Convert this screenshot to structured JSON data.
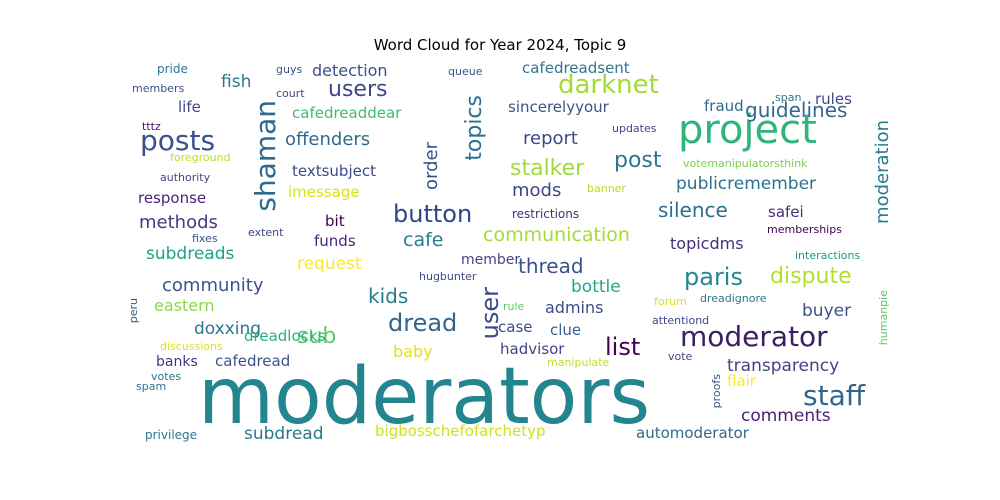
{
  "chart_data": {
    "type": "wordcloud",
    "title": "Word Cloud for Year 2024, Topic 9",
    "words": [
      {
        "text": "moderators",
        "color": "#23858e"
      },
      {
        "text": "project",
        "color": "#2fb47c"
      },
      {
        "text": "shaman",
        "color": "#30698e"
      },
      {
        "text": "posts",
        "color": "#3b518b"
      },
      {
        "text": "moderator",
        "color": "#3c1f63"
      },
      {
        "text": "staff",
        "color": "#32648e"
      },
      {
        "text": "darknet",
        "color": "#a2da37"
      },
      {
        "text": "users",
        "color": "#3f4788"
      },
      {
        "text": "topics",
        "color": "#2c718e"
      },
      {
        "text": "button",
        "color": "#32458a"
      },
      {
        "text": "paris",
        "color": "#24878e"
      },
      {
        "text": "dispute",
        "color": "#b5de2b"
      },
      {
        "text": "dread",
        "color": "#32658e"
      },
      {
        "text": "user",
        "color": "#3e4989"
      },
      {
        "text": "list",
        "color": "#440154"
      },
      {
        "text": "post",
        "color": "#2a788e"
      },
      {
        "text": "stalker",
        "color": "#a2da37"
      },
      {
        "text": "moderation",
        "color": "#287c8e"
      },
      {
        "text": "guidelines",
        "color": "#30698e"
      },
      {
        "text": "silence",
        "color": "#2d708e"
      },
      {
        "text": "sub",
        "color": "#5ec962"
      },
      {
        "text": "kids",
        "color": "#287c8e"
      },
      {
        "text": "thread",
        "color": "#3b528b"
      },
      {
        "text": "offenders",
        "color": "#306a8e"
      },
      {
        "text": "report",
        "color": "#3f4889"
      },
      {
        "text": "community",
        "color": "#3b528b"
      },
      {
        "text": "transparency",
        "color": "#414487"
      },
      {
        "text": "communication",
        "color": "#a5db36"
      },
      {
        "text": "cafe",
        "color": "#287d8e"
      },
      {
        "text": "subdreads",
        "color": "#1fa088"
      },
      {
        "text": "mods",
        "color": "#3f4788"
      },
      {
        "text": "order",
        "color": "#3b528b"
      },
      {
        "text": "publicremember",
        "color": "#2c728e"
      },
      {
        "text": "methods",
        "color": "#453781"
      },
      {
        "text": "doxxing",
        "color": "#2a788e"
      },
      {
        "text": "subdread",
        "color": "#2a778e"
      },
      {
        "text": "comments",
        "color": "#481f70"
      },
      {
        "text": "buyer",
        "color": "#3b528b"
      },
      {
        "text": "admins",
        "color": "#3e4989"
      },
      {
        "text": "request",
        "color": "#fde725"
      },
      {
        "text": "bottle",
        "color": "#22a884"
      },
      {
        "text": "detection",
        "color": "#3d4e8a"
      },
      {
        "text": "cafedreadsent",
        "color": "#2a788e"
      },
      {
        "text": "fish",
        "color": "#2a788e"
      },
      {
        "text": "baby",
        "color": "#dfe318"
      },
      {
        "text": "topicdms",
        "color": "#46307e"
      },
      {
        "text": "eastern",
        "color": "#8bd646"
      },
      {
        "text": "response",
        "color": "#482475"
      },
      {
        "text": "automoderator",
        "color": "#306a8e"
      },
      {
        "text": "textsubject",
        "color": "#3e4989"
      },
      {
        "text": "rules",
        "color": "#3f4889"
      },
      {
        "text": "bit",
        "color": "#440154"
      },
      {
        "text": "funds",
        "color": "#482878"
      },
      {
        "text": "cafedreaddear",
        "color": "#3dbc74"
      },
      {
        "text": "sincerelyyour",
        "color": "#3b528b"
      },
      {
        "text": "safei",
        "color": "#472d7b"
      },
      {
        "text": "hadvisor",
        "color": "#414487"
      },
      {
        "text": "flair",
        "color": "#fde725"
      },
      {
        "text": "life",
        "color": "#3e4a89"
      },
      {
        "text": "fraud",
        "color": "#306a8e"
      },
      {
        "text": "case",
        "color": "#3e4989"
      },
      {
        "text": "clue",
        "color": "#355f8d"
      },
      {
        "text": "bigbosschefofarchetyp",
        "color": "#d0e11c"
      },
      {
        "text": "dreadlocks",
        "color": "#29af7f"
      },
      {
        "text": "cafedread",
        "color": "#3b528b"
      },
      {
        "text": "banks",
        "color": "#46337f"
      },
      {
        "text": "imessage",
        "color": "#d8e219"
      },
      {
        "text": "member",
        "color": "#414487"
      },
      {
        "text": "votemanipulatorsthink",
        "color": "#7ad151"
      },
      {
        "text": "restrictions",
        "color": "#46307e"
      },
      {
        "text": "memberships",
        "color": "#440154"
      },
      {
        "text": "hugbunter",
        "color": "#3e4989"
      },
      {
        "text": "interactions",
        "color": "#1f968b"
      },
      {
        "text": "updates",
        "color": "#3f4788"
      },
      {
        "text": "banner",
        "color": "#b5de2b"
      },
      {
        "text": "foreground",
        "color": "#bddf26"
      },
      {
        "text": "authority",
        "color": "#3f4788"
      },
      {
        "text": "tttz",
        "color": "#471063"
      },
      {
        "text": "members",
        "color": "#3a548c"
      },
      {
        "text": "pride",
        "color": "#2a788e"
      },
      {
        "text": "guys",
        "color": "#3d4e8a"
      },
      {
        "text": "court",
        "color": "#3e4989"
      },
      {
        "text": "queue",
        "color": "#3b528b"
      },
      {
        "text": "span",
        "color": "#2a788e"
      },
      {
        "text": "fixes",
        "color": "#3b528b"
      },
      {
        "text": "extent",
        "color": "#3f4788"
      },
      {
        "text": "forum",
        "color": "#d8e219"
      },
      {
        "text": "dreadignore",
        "color": "#2a788e"
      },
      {
        "text": "rule",
        "color": "#5ec962"
      },
      {
        "text": "attentiond",
        "color": "#3f4788"
      },
      {
        "text": "humanpie",
        "color": "#5ec962"
      },
      {
        "text": "peru",
        "color": "#3b528b"
      },
      {
        "text": "discussions",
        "color": "#dfe318"
      },
      {
        "text": "manipulate",
        "color": "#c2df23"
      },
      {
        "text": "vote",
        "color": "#414487"
      },
      {
        "text": "votes",
        "color": "#2a788e"
      },
      {
        "text": "spam",
        "color": "#2a788e"
      },
      {
        "text": "proofs",
        "color": "#3b528b"
      },
      {
        "text": "privilege",
        "color": "#2a788e"
      }
    ]
  }
}
